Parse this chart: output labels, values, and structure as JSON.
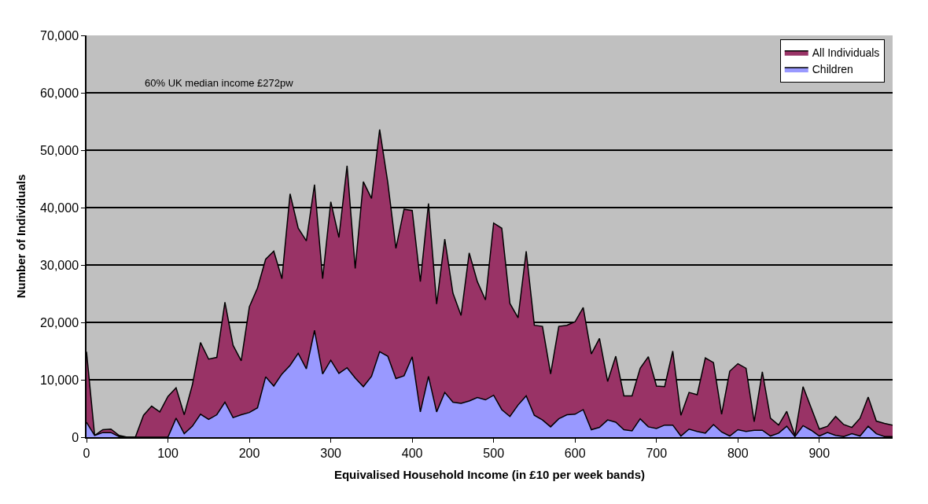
{
  "chart_data": {
    "type": "area",
    "xlabel": "Equivalised Household Income (in £10 per week bands)",
    "ylabel": "Number of Individuals",
    "annotations": [
      "60% UK median income £272pw"
    ],
    "x": [
      0,
      10,
      20,
      30,
      40,
      50,
      60,
      70,
      80,
      90,
      100,
      110,
      120,
      130,
      140,
      150,
      160,
      170,
      180,
      190,
      200,
      210,
      220,
      230,
      240,
      250,
      260,
      270,
      280,
      290,
      300,
      310,
      320,
      330,
      340,
      350,
      360,
      370,
      380,
      390,
      400,
      410,
      420,
      430,
      440,
      450,
      460,
      470,
      480,
      490,
      500,
      510,
      520,
      530,
      540,
      550,
      560,
      570,
      580,
      590,
      600,
      610,
      620,
      630,
      640,
      650,
      660,
      670,
      680,
      690,
      700,
      710,
      720,
      730,
      740,
      750,
      760,
      770,
      780,
      790,
      800,
      810,
      820,
      830,
      840,
      850,
      860,
      870,
      880,
      890,
      900,
      910,
      920,
      930,
      940,
      950,
      960,
      970,
      980,
      990
    ],
    "series": [
      {
        "name": "All Individuals",
        "color": "#993366",
        "values": [
          14900,
          300,
          1300,
          1400,
          300,
          0,
          0,
          3800,
          5400,
          4400,
          7100,
          8600,
          3900,
          9100,
          16500,
          13600,
          13900,
          23500,
          16000,
          13300,
          22700,
          26000,
          31000,
          32400,
          27600,
          42400,
          36400,
          34200,
          44000,
          27600,
          41000,
          34800,
          47300,
          29400,
          44500,
          41600,
          53600,
          44400,
          32900,
          39700,
          39500,
          27100,
          40700,
          23200,
          34500,
          25100,
          21200,
          32100,
          27100,
          23900,
          37300,
          36400,
          23300,
          20800,
          32400,
          19500,
          19300,
          11000,
          19300,
          19500,
          20100,
          22600,
          14500,
          17200,
          9700,
          14100,
          7200,
          7200,
          12000,
          14000,
          8900,
          8800,
          15000,
          3800,
          7800,
          7400,
          13800,
          13000,
          4000,
          11500,
          12800,
          12000,
          2700,
          11400,
          3300,
          2100,
          4500,
          300,
          8800,
          5100,
          1400,
          1900,
          3600,
          2200,
          1700,
          3300,
          7000,
          2800,
          2400,
          2100
        ]
      },
      {
        "name": "Children",
        "color": "#9999ff",
        "values": [
          2600,
          300,
          800,
          800,
          100,
          0,
          0,
          0,
          0,
          0,
          0,
          3300,
          600,
          1900,
          4000,
          3100,
          3900,
          6100,
          3400,
          3900,
          4300,
          5100,
          10500,
          8900,
          11000,
          12500,
          14600,
          11900,
          18600,
          11000,
          13400,
          11100,
          12100,
          10300,
          8800,
          10600,
          14900,
          14100,
          10200,
          10700,
          14000,
          4400,
          10600,
          4400,
          7800,
          6100,
          5900,
          6300,
          6900,
          6500,
          7300,
          4800,
          3600,
          5600,
          7200,
          3800,
          3000,
          1800,
          3200,
          3900,
          4000,
          4800,
          1300,
          1700,
          3000,
          2600,
          1300,
          1100,
          3200,
          1800,
          1500,
          2100,
          2100,
          200,
          1400,
          1000,
          700,
          2200,
          900,
          200,
          1300,
          1000,
          1200,
          1200,
          200,
          700,
          1900,
          100,
          2000,
          1200,
          200,
          800,
          300,
          100,
          600,
          200,
          1900,
          600,
          100,
          100
        ]
      }
    ],
    "xlim": [
      0,
      990
    ],
    "xticks": [
      0,
      100,
      200,
      300,
      400,
      500,
      600,
      700,
      800,
      900
    ],
    "ylim": [
      0,
      70000
    ],
    "yticks": [
      {
        "value": 0,
        "label": "0"
      },
      {
        "value": 10000,
        "label": "10,000"
      },
      {
        "value": 20000,
        "label": "20,000"
      },
      {
        "value": 30000,
        "label": "30,000"
      },
      {
        "value": 40000,
        "label": "40,000"
      },
      {
        "value": 50000,
        "label": "50,000"
      },
      {
        "value": 60000,
        "label": "60,000"
      },
      {
        "value": 70000,
        "label": "70,000"
      }
    ],
    "grid": "y",
    "legend": "top right"
  }
}
